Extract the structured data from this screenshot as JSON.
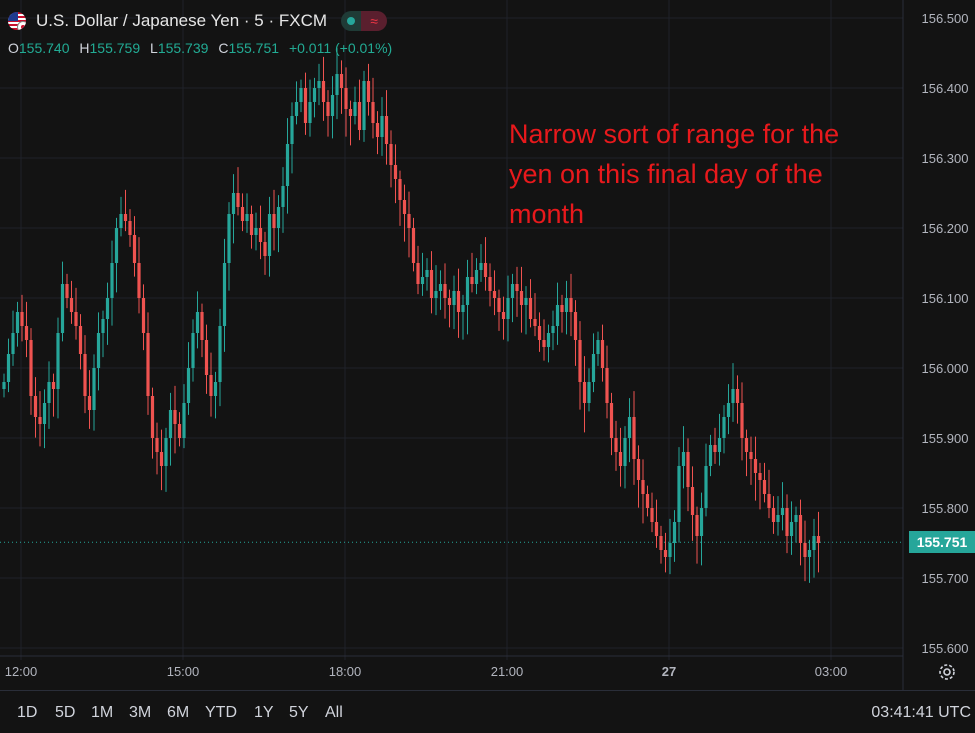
{
  "header": {
    "title": "U.S. Dollar / Japanese Yen · 5 · FXCM",
    "status_icon": "≈",
    "ohlc": {
      "o_label": "O",
      "o": "155.740",
      "h_label": "H",
      "h": "155.759",
      "l_label": "L",
      "l": "155.739",
      "c_label": "C",
      "c": "155.751",
      "change": "+0.011 (+0.01%)"
    }
  },
  "annotation": "Narrow sort of range for the yen on this final day of the month",
  "last_price_label": "155.751",
  "range_buttons": [
    "1D",
    "5D",
    "1M",
    "3M",
    "6M",
    "YTD",
    "1Y",
    "5Y",
    "All"
  ],
  "clock": "03:41:41 UTC",
  "colors": {
    "up": "#26a69a",
    "down": "#ef5350",
    "annotation": "#e8191c",
    "background": "#131313"
  },
  "chart_data": {
    "type": "candlestick",
    "instrument": "U.S. Dollar / Japanese Yen",
    "interval": "5",
    "source": "FXCM",
    "ylim": [
      155.6,
      156.5
    ],
    "y_ticks": [
      "156.500",
      "156.400",
      "156.300",
      "156.200",
      "156.100",
      "156.000",
      "155.900",
      "155.800",
      "155.700",
      "155.600"
    ],
    "x_ticks": [
      {
        "label": "12:00",
        "index": 0
      },
      {
        "label": "15:00",
        "index": 36
      },
      {
        "label": "18:00",
        "index": 72
      },
      {
        "label": "21:00",
        "index": 108
      },
      {
        "label": "27",
        "index": 144
      },
      {
        "label": "03:00",
        "index": 180
      }
    ],
    "last_price": 155.751,
    "close_series": [
      155.98,
      156.02,
      156.05,
      156.08,
      156.06,
      156.04,
      155.96,
      155.93,
      155.92,
      155.95,
      155.98,
      155.97,
      156.05,
      156.12,
      156.1,
      156.08,
      156.06,
      156.02,
      155.96,
      155.94,
      156.0,
      156.05,
      156.07,
      156.1,
      156.15,
      156.2,
      156.22,
      156.21,
      156.19,
      156.15,
      156.1,
      156.05,
      155.96,
      155.9,
      155.88,
      155.86,
      155.9,
      155.94,
      155.92,
      155.9,
      155.95,
      156.0,
      156.05,
      156.08,
      156.04,
      155.99,
      155.96,
      155.98,
      156.06,
      156.15,
      156.22,
      156.25,
      156.23,
      156.21,
      156.22,
      156.19,
      156.2,
      156.18,
      156.16,
      156.22,
      156.2,
      156.23,
      156.26,
      156.32,
      156.36,
      156.38,
      156.4,
      156.35,
      156.38,
      156.4,
      156.41,
      156.38,
      156.36,
      156.39,
      156.42,
      156.4,
      156.37,
      156.36,
      156.38,
      156.34,
      156.41,
      156.38,
      156.35,
      156.33,
      156.36,
      156.32,
      156.29,
      156.27,
      156.24,
      156.22,
      156.2,
      156.15,
      156.12,
      156.13,
      156.14,
      156.1,
      156.11,
      156.12,
      156.1,
      156.09,
      156.11,
      156.08,
      156.09,
      156.13,
      156.12,
      156.14,
      156.15,
      156.13,
      156.11,
      156.1,
      156.08,
      156.07,
      156.1,
      156.12,
      156.11,
      156.09,
      156.1,
      156.07,
      156.06,
      156.04,
      156.03,
      156.05,
      156.06,
      156.09,
      156.08,
      156.1,
      156.08,
      156.04,
      155.98,
      155.95,
      155.98,
      156.02,
      156.04,
      156.0,
      155.95,
      155.9,
      155.88,
      155.86,
      155.9,
      155.93,
      155.87,
      155.84,
      155.82,
      155.8,
      155.78,
      155.76,
      155.74,
      155.73,
      155.75,
      155.78,
      155.86,
      155.88,
      155.83,
      155.79,
      155.76,
      155.8,
      155.86,
      155.89,
      155.88,
      155.9,
      155.93,
      155.95,
      155.97,
      155.95,
      155.9,
      155.88,
      155.87,
      155.85,
      155.84,
      155.82,
      155.8,
      155.78,
      155.79,
      155.8,
      155.76,
      155.78,
      155.79,
      155.75,
      155.73,
      155.74,
      155.76,
      155.75
    ]
  }
}
